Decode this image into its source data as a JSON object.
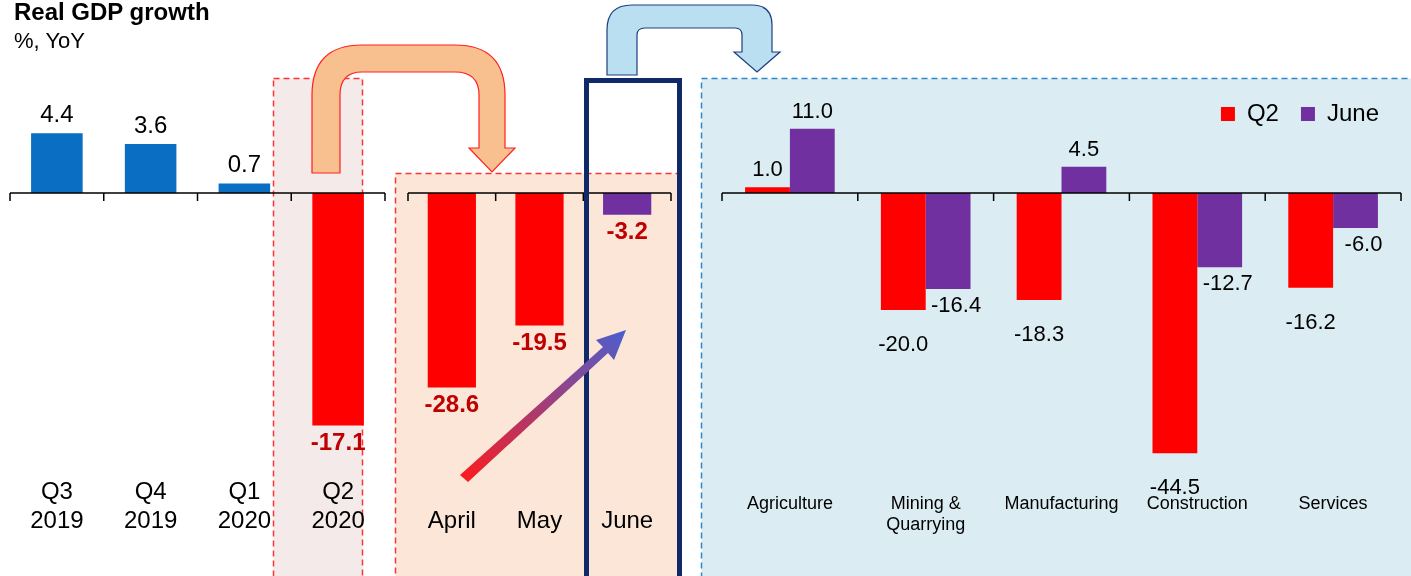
{
  "chart_data": [
    {
      "type": "bar",
      "title": "Real GDP growth",
      "subtitle": "%, YoY",
      "categories": [
        "Q3\n2019",
        "Q4\n2019",
        "Q1\n2020",
        "Q2\n2020"
      ],
      "values": [
        4.4,
        3.6,
        0.7,
        -17.1
      ],
      "value_labels": [
        "4.4",
        "3.6",
        "0.7",
        "-17.1"
      ],
      "colors": [
        "#0a6fc2",
        "#0a6fc2",
        "#0a6fc2",
        "#ff0000"
      ]
    },
    {
      "type": "bar",
      "categories": [
        "April",
        "May",
        "June"
      ],
      "values": [
        -28.6,
        -19.5,
        -3.2
      ],
      "value_labels": [
        "-28.6",
        "-19.5",
        "-3.2"
      ],
      "colors": [
        "#ff0000",
        "#ff0000",
        "#7030a0"
      ]
    },
    {
      "type": "bar",
      "categories": [
        "Agriculture",
        "Mining &\nQuarrying",
        "Manufacturing",
        "Construction",
        "Services"
      ],
      "legend": "top right",
      "series": [
        {
          "name": "Q2",
          "color": "#ff0000",
          "values": [
            1.0,
            -20.0,
            -18.3,
            -44.5,
            -16.2
          ],
          "value_labels": [
            "1.0",
            "-20.0",
            "-18.3",
            "-44.5",
            "-16.2"
          ]
        },
        {
          "name": "June",
          "color": "#7030a0",
          "values": [
            11.0,
            -16.4,
            4.5,
            -12.7,
            -6.0
          ],
          "value_labels": [
            "11.0",
            "-16.4",
            "4.5",
            "-12.7",
            "-6.0"
          ]
        }
      ]
    }
  ]
}
